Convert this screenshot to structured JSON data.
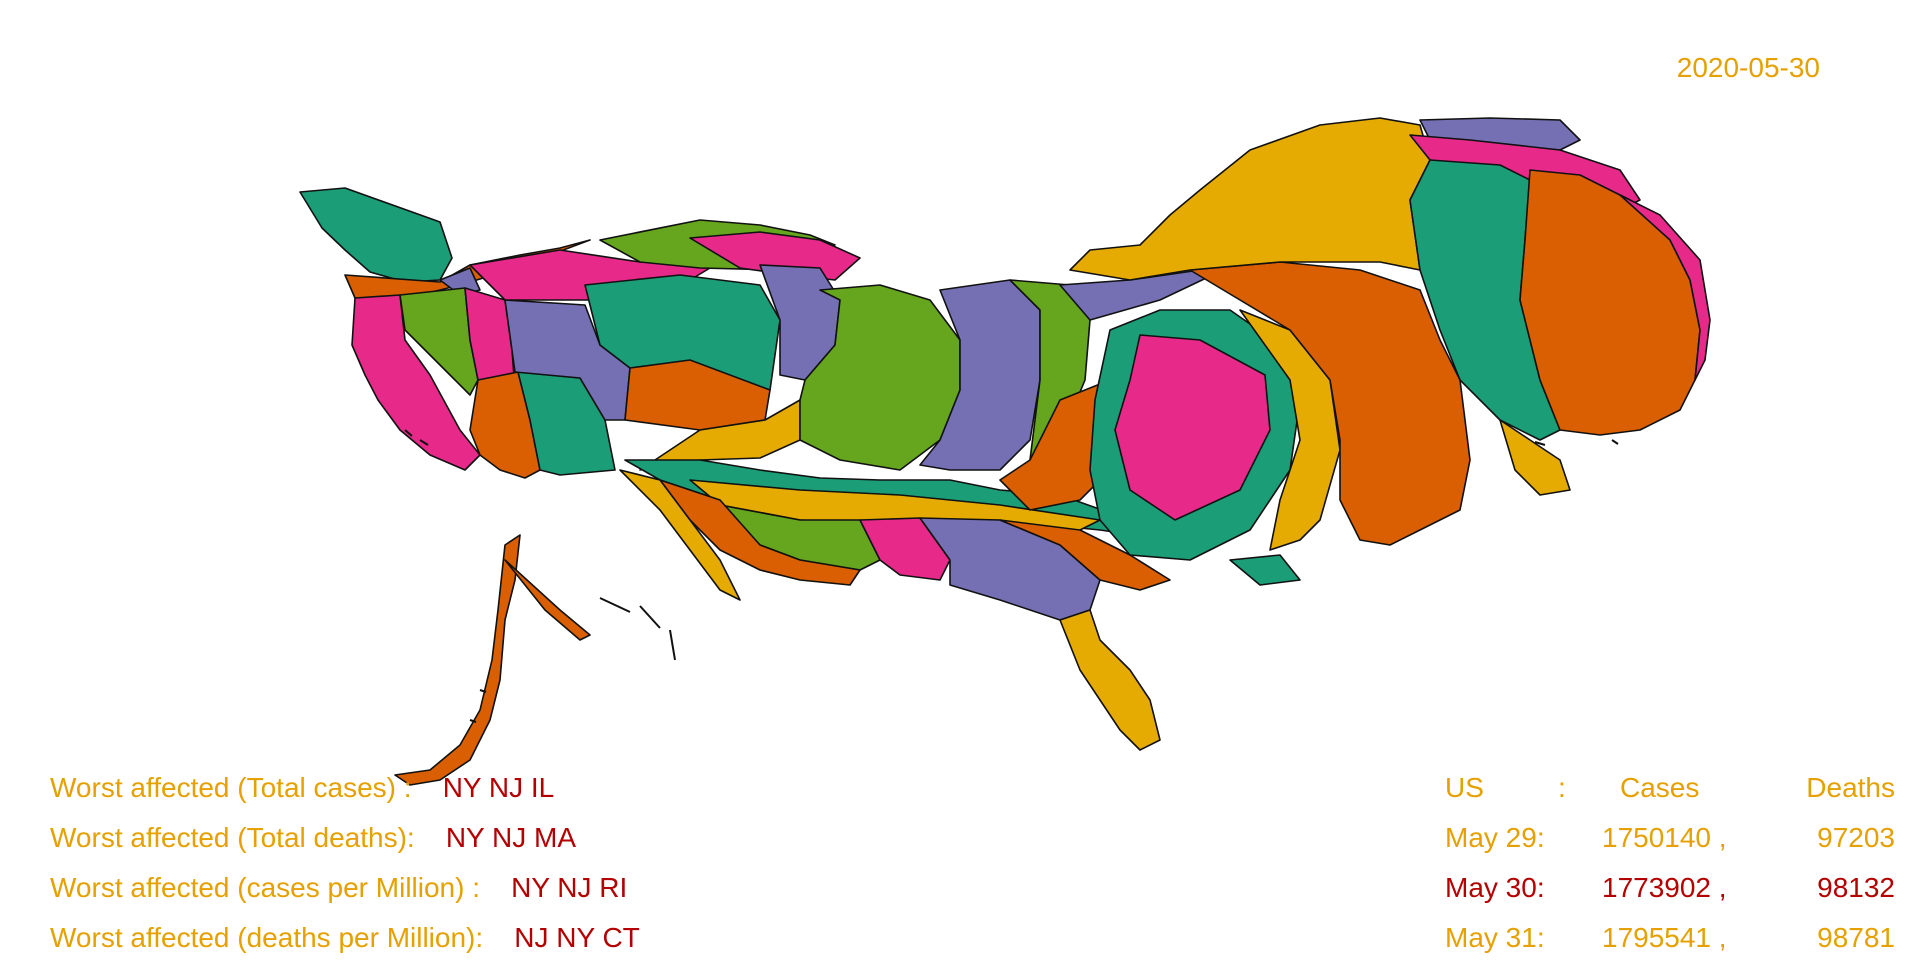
{
  "date": "2020-05-30",
  "colors": {
    "label": "#e6a000",
    "highlight": "#b40000",
    "palette": [
      "#1b9e77",
      "#d95f02",
      "#7570b3",
      "#e7298a",
      "#66a61e",
      "#e6ab02"
    ]
  },
  "worst_affected": [
    {
      "label": "Worst affected (Total cases) :",
      "states": "NY NJ IL"
    },
    {
      "label": "Worst affected (Total deaths):",
      "states": "NY NJ MA"
    },
    {
      "label": "Worst affected (cases per Million) :",
      "states": "NY NJ RI"
    },
    {
      "label": "Worst affected (deaths per Million):",
      "states": "NJ NY CT"
    }
  ],
  "us_stats": {
    "header": {
      "region": "US",
      "sep": ":",
      "cases": "Cases",
      "deaths": "Deaths"
    },
    "rows": [
      {
        "date": "May 29:",
        "cases": "1750140 ,",
        "deaths": "97203",
        "current": false
      },
      {
        "date": "May 30:",
        "cases": "1773902 ,",
        "deaths": "98132",
        "current": true
      },
      {
        "date": "May 31:",
        "cases": "1795541 ,",
        "deaths": "98781",
        "current": false
      }
    ]
  }
}
